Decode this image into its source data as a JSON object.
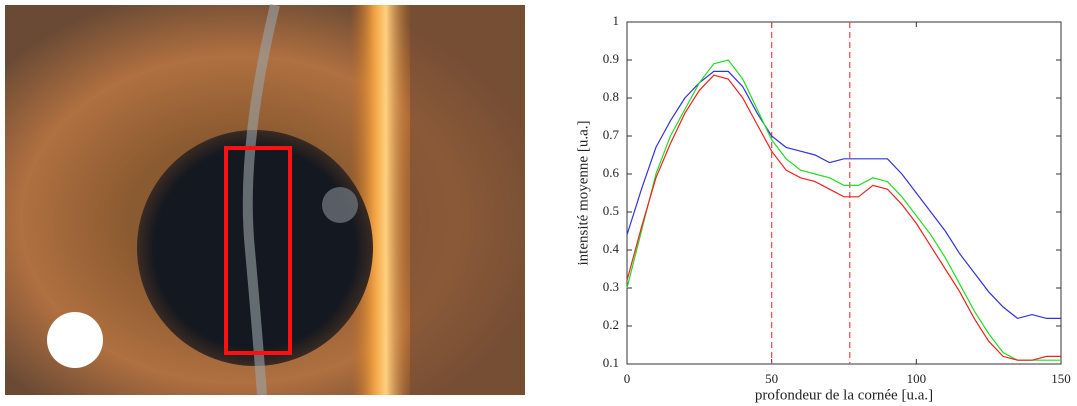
{
  "chart_data": {
    "type": "line",
    "xlabel": "profondeur de la cornée [u.a.]",
    "ylabel": "intensité moyenne [u.a.]",
    "x": [
      0,
      5,
      10,
      15,
      20,
      25,
      30,
      35,
      40,
      45,
      50,
      55,
      60,
      65,
      70,
      75,
      80,
      85,
      90,
      95,
      100,
      105,
      110,
      115,
      120,
      125,
      130,
      135,
      140,
      145,
      150
    ],
    "series": [
      {
        "name": "bleu",
        "color": "#3333dd",
        "values": [
          0.44,
          0.56,
          0.67,
          0.74,
          0.8,
          0.84,
          0.87,
          0.87,
          0.83,
          0.76,
          0.7,
          0.67,
          0.66,
          0.65,
          0.63,
          0.64,
          0.64,
          0.64,
          0.64,
          0.6,
          0.55,
          0.5,
          0.45,
          0.39,
          0.34,
          0.29,
          0.25,
          0.22,
          0.23,
          0.22,
          0.22
        ]
      },
      {
        "name": "vert",
        "color": "#22dd22",
        "values": [
          0.3,
          0.45,
          0.6,
          0.7,
          0.77,
          0.84,
          0.89,
          0.9,
          0.85,
          0.77,
          0.69,
          0.64,
          0.61,
          0.6,
          0.59,
          0.57,
          0.57,
          0.59,
          0.58,
          0.54,
          0.49,
          0.44,
          0.38,
          0.31,
          0.24,
          0.18,
          0.13,
          0.11,
          0.11,
          0.11,
          0.11
        ]
      },
      {
        "name": "rouge",
        "color": "#ee2222",
        "values": [
          0.32,
          0.46,
          0.59,
          0.68,
          0.76,
          0.82,
          0.86,
          0.85,
          0.8,
          0.73,
          0.66,
          0.61,
          0.59,
          0.58,
          0.56,
          0.54,
          0.54,
          0.57,
          0.56,
          0.52,
          0.47,
          0.41,
          0.35,
          0.29,
          0.22,
          0.16,
          0.12,
          0.11,
          0.11,
          0.12,
          0.12
        ]
      }
    ],
    "vlines": [
      50,
      77
    ],
    "vline_color": "#ee4444",
    "xlim": [
      0,
      150
    ],
    "xticks": [
      0,
      50,
      100,
      150
    ],
    "ylim": [
      0.1,
      1
    ],
    "yticks": [
      0.1,
      0.2,
      0.3,
      0.4,
      0.5,
      0.6,
      0.7,
      0.8,
      0.9,
      1
    ],
    "grid": false
  }
}
